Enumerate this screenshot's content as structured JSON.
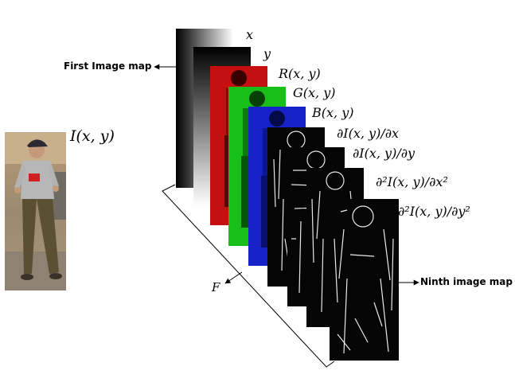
{
  "figure": {
    "input_label": "I(x, y)",
    "first_map_label": "First Image map",
    "ninth_map_label": "Ninth image map",
    "feature_axis_label": "F"
  },
  "maps": [
    {
      "label": "x",
      "kind": "gradient-x"
    },
    {
      "label": "y",
      "kind": "gradient-y"
    },
    {
      "label": "R(x, y)",
      "kind": "red"
    },
    {
      "label": "G(x, y)",
      "kind": "green"
    },
    {
      "label": "B(x, y)",
      "kind": "blue"
    },
    {
      "label": "∂I(x, y)/∂x",
      "kind": "edge"
    },
    {
      "label": "∂I(x, y)/∂y",
      "kind": "edge"
    },
    {
      "label": "∂²I(x, y)/∂x²",
      "kind": "edge"
    },
    {
      "label": "∂²I(x, y)/∂y²",
      "kind": "edge"
    }
  ],
  "colors": {
    "red_channel": "#d01010",
    "green_channel": "#20c020",
    "blue_channel": "#1020d0",
    "edge_background": "#050505",
    "edge_lines": "#ffffff"
  }
}
